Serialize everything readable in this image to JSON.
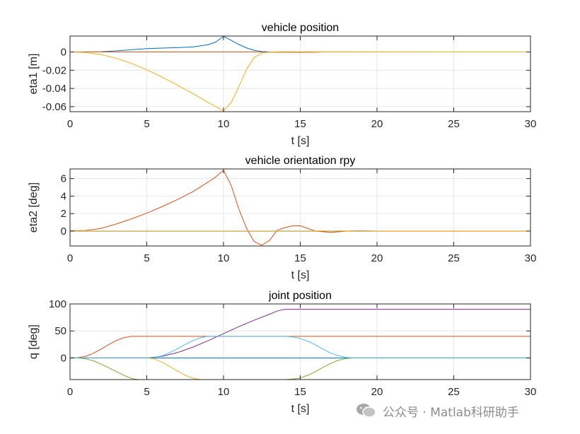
{
  "watermark": {
    "text": "公众号 · Matlab科研助手",
    "icon": "wechat-icon"
  },
  "colors": {
    "blue": "#0072BD",
    "red": "#D95319",
    "yellow": "#EDB120",
    "purple": "#7E2F8E",
    "green": "#77AC30",
    "cyan": "#4DBEEE"
  },
  "chart_data": [
    {
      "type": "line",
      "title": "vehicle position",
      "xlabel": "t [s]",
      "ylabel": "eta1 [m]",
      "xlim": [
        0,
        30
      ],
      "ylim": [
        -0.0655,
        0.0175
      ],
      "xticks": [
        0,
        5,
        10,
        15,
        20,
        25,
        30
      ],
      "yticks": [
        0,
        -0.02,
        -0.04,
        -0.06
      ],
      "ytick_labels": [
        "0",
        "-0.02",
        "-0.04",
        "-0.06"
      ],
      "grid": true,
      "series": [
        {
          "color": "#0072BD",
          "x": [
            0,
            1,
            2,
            3,
            4,
            5,
            6,
            7,
            8,
            9,
            9.5,
            10,
            10.5,
            11,
            11.5,
            12,
            12.5,
            13,
            14,
            15,
            16,
            30
          ],
          "y": [
            0,
            0,
            0.0002,
            0.0012,
            0.0025,
            0.0037,
            0.0043,
            0.0048,
            0.0056,
            0.008,
            0.011,
            0.0172,
            0.0128,
            0.0082,
            0.0045,
            0.0018,
            0.0005,
            0.0001,
            0,
            -0.0001,
            0,
            0
          ]
        },
        {
          "color": "#D95319",
          "x": [
            0,
            12,
            13,
            15,
            16,
            16.5,
            30
          ],
          "y": [
            0,
            0,
            -0.0002,
            -0.0003,
            -0.0002,
            0,
            0
          ]
        },
        {
          "color": "#EDB120",
          "x": [
            0,
            1,
            2,
            3,
            4,
            5,
            6,
            7,
            8,
            9,
            9.5,
            10,
            10.5,
            11,
            11.5,
            12,
            12.5,
            13,
            14,
            30
          ],
          "y": [
            0,
            -0.0005,
            -0.0028,
            -0.0068,
            -0.0125,
            -0.0195,
            -0.0275,
            -0.0365,
            -0.0455,
            -0.0555,
            -0.06,
            -0.0648,
            -0.0555,
            -0.038,
            -0.019,
            -0.006,
            -0.0012,
            0,
            0.0002,
            0
          ]
        }
      ]
    },
    {
      "type": "line",
      "title": "vehicle orientation rpy",
      "xlabel": "t [s]",
      "ylabel": "eta2 [deg]",
      "xlim": [
        0,
        30
      ],
      "ylim": [
        -1.7,
        7.1
      ],
      "xticks": [
        0,
        5,
        10,
        15,
        20,
        25,
        30
      ],
      "yticks": [
        6,
        4,
        2,
        0
      ],
      "ytick_labels": [
        "6",
        "4",
        "2",
        "0"
      ],
      "grid": true,
      "series": [
        {
          "color": "#0072BD",
          "x": [
            0,
            30
          ],
          "y": [
            0,
            0
          ]
        },
        {
          "color": "#D95319",
          "x": [
            0,
            1,
            2,
            3,
            4,
            5,
            6,
            7,
            8,
            9,
            9.5,
            10,
            10.5,
            11,
            11.5,
            12,
            12.5,
            13,
            13.5,
            14,
            14.5,
            15,
            15.5,
            16,
            17,
            18,
            19,
            20,
            30
          ],
          "y": [
            0.05,
            0.07,
            0.3,
            0.8,
            1.4,
            2.05,
            2.8,
            3.6,
            4.5,
            5.6,
            6.2,
            6.95,
            5.2,
            2.5,
            0.3,
            -1.2,
            -1.62,
            -1.05,
            0.1,
            0.4,
            0.6,
            0.6,
            0.3,
            0,
            -0.15,
            0,
            0.05,
            0,
            0
          ]
        },
        {
          "color": "#EDB120",
          "x": [
            0,
            30
          ],
          "y": [
            0.02,
            0.02
          ]
        }
      ]
    },
    {
      "type": "line",
      "title": "joint position",
      "xlabel": "t [s]",
      "ylabel": "q [deg]",
      "xlim": [
        0,
        30
      ],
      "ylim": [
        -40,
        100
      ],
      "xticks": [
        0,
        5,
        10,
        15,
        20,
        25,
        30
      ],
      "yticks": [
        100,
        50,
        0
      ],
      "ytick_labels": [
        "100",
        "50",
        "0"
      ],
      "grid": true,
      "series": [
        {
          "color": "#0072BD",
          "x": [
            0,
            30
          ],
          "y": [
            0,
            0
          ]
        },
        {
          "color": "#D95319",
          "x": [
            0,
            0.5,
            1,
            1.5,
            2,
            2.5,
            3,
            3.5,
            4,
            4.5,
            30
          ],
          "y": [
            0,
            0.5,
            3,
            8.5,
            16,
            24.5,
            32,
            37.5,
            40,
            40,
            40
          ]
        },
        {
          "color": "#EDB120",
          "x": [
            0,
            0.5,
            1,
            1.5,
            5,
            5.5,
            6,
            6.5,
            7,
            7.5,
            8,
            8.5,
            9,
            30
          ],
          "y": [
            0,
            0,
            -0.5,
            0,
            0,
            -2,
            -8,
            -16,
            -24,
            -32,
            -37.5,
            -40,
            -40,
            -40
          ]
        },
        {
          "color": "#7E2F8E",
          "x": [
            0,
            5,
            6,
            7,
            8,
            9,
            10,
            11,
            12,
            13,
            13.5,
            14,
            30
          ],
          "y": [
            0,
            0,
            3,
            10,
            20,
            32,
            45,
            58,
            70,
            81,
            87,
            90,
            90
          ]
        },
        {
          "color": "#77AC30",
          "x": [
            0,
            0.5,
            1,
            1.5,
            2,
            2.5,
            3,
            3.5,
            4,
            4.5,
            14,
            14.5,
            15,
            15.5,
            16,
            16.5,
            17,
            17.5,
            18,
            18.5,
            30
          ],
          "y": [
            0,
            0,
            -1.5,
            -5,
            -11,
            -18,
            -25,
            -32,
            -38,
            -40,
            -40,
            -39,
            -37,
            -32,
            -25,
            -17,
            -10,
            -4,
            -1,
            0,
            0
          ]
        },
        {
          "color": "#4DBEEE",
          "x": [
            0,
            5,
            5.5,
            6,
            6.5,
            7,
            7.5,
            8,
            8.5,
            9,
            14,
            14.5,
            15,
            15.5,
            16,
            16.5,
            17,
            17.5,
            18,
            18.5,
            30
          ],
          "y": [
            0,
            0,
            1,
            4,
            10,
            17,
            25,
            32,
            37.5,
            40,
            40,
            39,
            36,
            31,
            24,
            16,
            9,
            4,
            1,
            0,
            0
          ]
        }
      ]
    }
  ]
}
